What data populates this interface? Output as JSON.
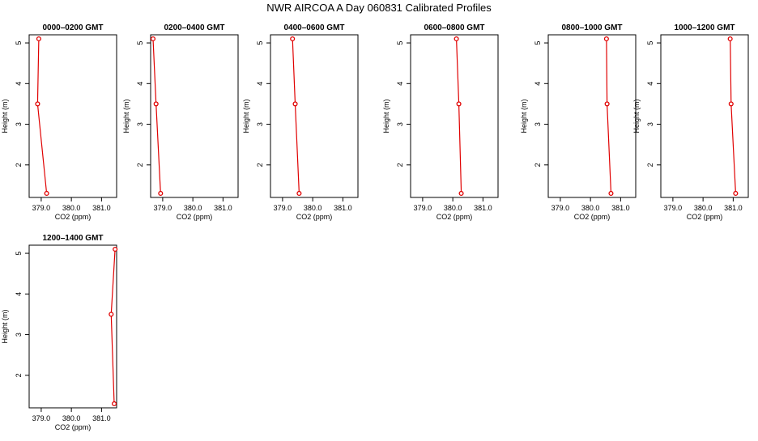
{
  "title": "NWR AIRCOA A  Day 060831  Calibrated Profiles",
  "colors": {
    "line": "#e00000",
    "marker": "#e00000",
    "axis": "#000000"
  },
  "chart_data": [
    {
      "type": "line",
      "title": "0000–0200 GMT",
      "xlabel": "CO2 (ppm)",
      "ylabel": "Height (m)",
      "xlim": [
        378.6,
        381.5
      ],
      "ylim": [
        1.2,
        5.2
      ],
      "xticks": [
        379.0,
        380.0,
        381.0
      ],
      "xtick_labels": [
        "379.0",
        "380.0",
        "381.0"
      ],
      "yticks": [
        2,
        3,
        4,
        5
      ],
      "ytick_labels": [
        "2",
        "3",
        "4",
        "5"
      ],
      "series": [
        {
          "x": [
            378.92,
            378.88,
            379.18
          ],
          "y": [
            5.1,
            3.5,
            1.3
          ]
        }
      ]
    },
    {
      "type": "line",
      "title": "0200–0400 GMT",
      "xlabel": "CO2 (ppm)",
      "ylabel": "Height (m)",
      "xlim": [
        378.6,
        381.5
      ],
      "ylim": [
        1.2,
        5.2
      ],
      "xticks": [
        379.0,
        380.0,
        381.0
      ],
      "xtick_labels": [
        "379.0",
        "380.0",
        "381.0"
      ],
      "yticks": [
        2,
        3,
        4,
        5
      ],
      "ytick_labels": [
        "2",
        "3",
        "4",
        "5"
      ],
      "series": [
        {
          "x": [
            378.68,
            378.78,
            378.93
          ],
          "y": [
            5.1,
            3.5,
            1.3
          ]
        }
      ]
    },
    {
      "type": "line",
      "title": "0400–0600 GMT",
      "xlabel": "CO2 (ppm)",
      "ylabel": "Height (m)",
      "xlim": [
        378.6,
        381.5
      ],
      "ylim": [
        1.2,
        5.2
      ],
      "xticks": [
        379.0,
        380.0,
        381.0
      ],
      "xtick_labels": [
        "379.0",
        "380.0",
        "381.0"
      ],
      "yticks": [
        2,
        3,
        4,
        5
      ],
      "ytick_labels": [
        "2",
        "3",
        "4",
        "5"
      ],
      "series": [
        {
          "x": [
            379.33,
            379.42,
            379.55
          ],
          "y": [
            5.1,
            3.5,
            1.3
          ]
        }
      ]
    },
    {
      "type": "line",
      "title": "0600–0800 GMT",
      "xlabel": "CO2 (ppm)",
      "ylabel": "Height (m)",
      "xlim": [
        378.6,
        381.5
      ],
      "ylim": [
        1.2,
        5.2
      ],
      "xticks": [
        379.0,
        380.0,
        381.0
      ],
      "xtick_labels": [
        "379.0",
        "380.0",
        "381.0"
      ],
      "yticks": [
        2,
        3,
        4,
        5
      ],
      "ytick_labels": [
        "2",
        "3",
        "4",
        "5"
      ],
      "series": [
        {
          "x": [
            380.12,
            380.2,
            380.28
          ],
          "y": [
            5.1,
            3.5,
            1.3
          ]
        }
      ]
    },
    {
      "type": "line",
      "title": "0800–1000 GMT",
      "xlabel": "CO2 (ppm)",
      "ylabel": "Height (m)",
      "xlim": [
        378.6,
        381.5
      ],
      "ylim": [
        1.2,
        5.2
      ],
      "xticks": [
        379.0,
        380.0,
        381.0
      ],
      "xtick_labels": [
        "379.0",
        "380.0",
        "381.0"
      ],
      "yticks": [
        2,
        3,
        4,
        5
      ],
      "ytick_labels": [
        "2",
        "3",
        "4",
        "5"
      ],
      "series": [
        {
          "x": [
            380.53,
            380.55,
            380.68
          ],
          "y": [
            5.1,
            3.5,
            1.3
          ]
        }
      ]
    },
    {
      "type": "line",
      "title": "1000–1200 GMT",
      "xlabel": "CO2 (ppm)",
      "ylabel": "Height (m)",
      "xlim": [
        378.6,
        381.5
      ],
      "ylim": [
        1.2,
        5.2
      ],
      "xticks": [
        379.0,
        380.0,
        381.0
      ],
      "xtick_labels": [
        "379.0",
        "380.0",
        "381.0"
      ],
      "yticks": [
        2,
        3,
        4,
        5
      ],
      "ytick_labels": [
        "2",
        "3",
        "4",
        "5"
      ],
      "series": [
        {
          "x": [
            380.9,
            380.93,
            381.08
          ],
          "y": [
            5.1,
            3.5,
            1.3
          ]
        }
      ]
    },
    {
      "type": "line",
      "title": "1200–1400 GMT",
      "xlabel": "CO2 (ppm)",
      "ylabel": "Height (m)",
      "xlim": [
        378.6,
        381.5
      ],
      "ylim": [
        1.2,
        5.2
      ],
      "xticks": [
        379.0,
        380.0,
        381.0
      ],
      "xtick_labels": [
        "379.0",
        "380.0",
        "381.0"
      ],
      "yticks": [
        2,
        3,
        4,
        5
      ],
      "ytick_labels": [
        "2",
        "3",
        "4",
        "5"
      ],
      "series": [
        {
          "x": [
            381.45,
            381.32,
            381.42
          ],
          "y": [
            5.1,
            3.5,
            1.3
          ]
        }
      ]
    }
  ]
}
